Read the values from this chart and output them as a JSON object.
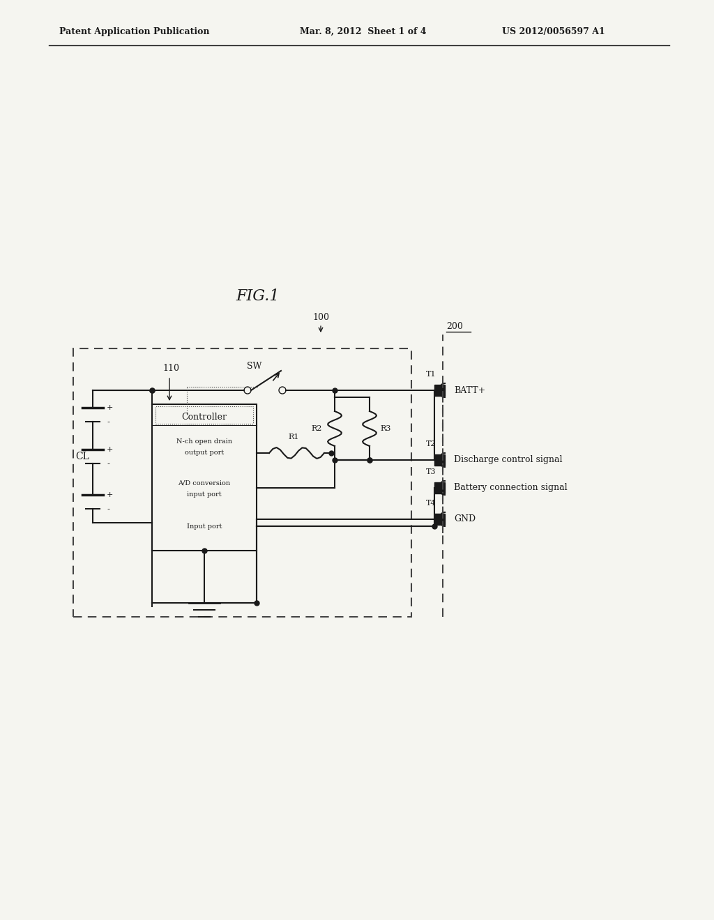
{
  "title_header_left": "Patent Application Publication",
  "title_header_mid": "Mar. 8, 2012  Sheet 1 of 4",
  "title_header_right": "US 2012/0056597 A1",
  "fig_label": "FIG.1",
  "label_100": "100",
  "label_200": "200",
  "label_110": "110",
  "label_CL": "CL",
  "label_SW": "SW",
  "label_T1": "T1",
  "label_T2": "T2",
  "label_T3": "T3",
  "label_T4": "T4",
  "label_R1": "R1",
  "label_R2": "R2",
  "label_R3": "R3",
  "label_BATT": "BATT+",
  "label_GND": "GND",
  "label_discharge": "Discharge control signal",
  "label_battery_conn": "Battery connection signal",
  "bg_color": "#f5f5f0",
  "line_color": "#1a1a1a",
  "dashed_color": "#444444",
  "header_line_color": "#000000"
}
